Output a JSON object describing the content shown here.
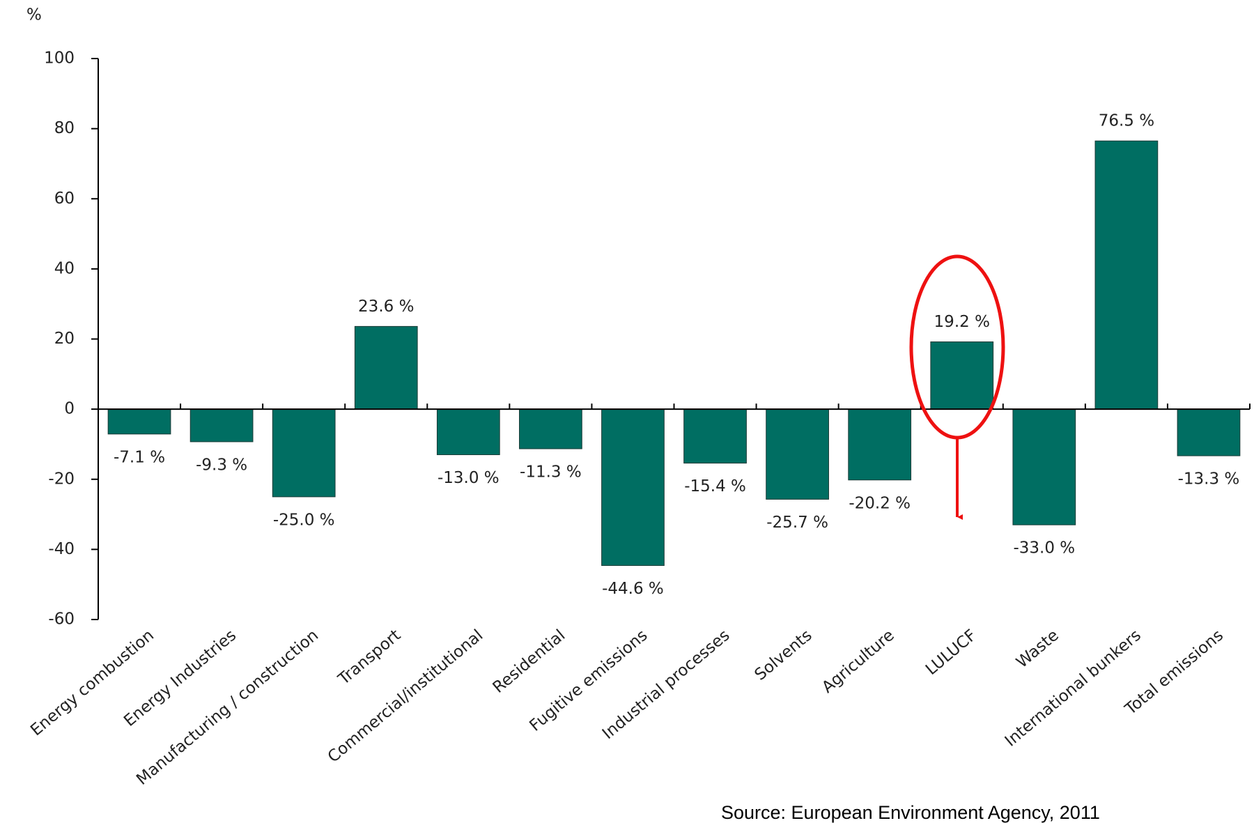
{
  "chart_data": {
    "type": "bar",
    "y_label": "%",
    "categories": [
      "Energy combustion",
      "Energy Industries",
      "Manufacturing / construction",
      "Transport",
      "Commercial/institutional",
      "Residential",
      "Fugitive emissions",
      "Industrial processes",
      "Solvents",
      "Agriculture",
      "LULUCF",
      "Waste",
      "International bunkers",
      "Total emissions"
    ],
    "values": [
      -7.1,
      -9.3,
      -25.0,
      23.6,
      -13.0,
      -11.3,
      -44.6,
      -15.4,
      -25.7,
      -20.2,
      19.2,
      -33.0,
      76.5,
      -13.3
    ],
    "value_labels": [
      "-7.1 %",
      "-9.3 %",
      "-25.0 %",
      "23.6 %",
      "-13.0 %",
      "-11.3 %",
      "-44.6 %",
      "-15.4 %",
      "-25.7 %",
      "-20.2 %",
      "19.2 %",
      "-33.0 %",
      "76.5 %",
      "-13.3 %"
    ],
    "color": "#006e62",
    "ylim": [
      -60,
      100
    ],
    "yticks": [
      -60,
      -40,
      -20,
      0,
      20,
      40,
      60,
      80,
      100
    ],
    "source": "Source: European Environment Agency, 2011"
  }
}
